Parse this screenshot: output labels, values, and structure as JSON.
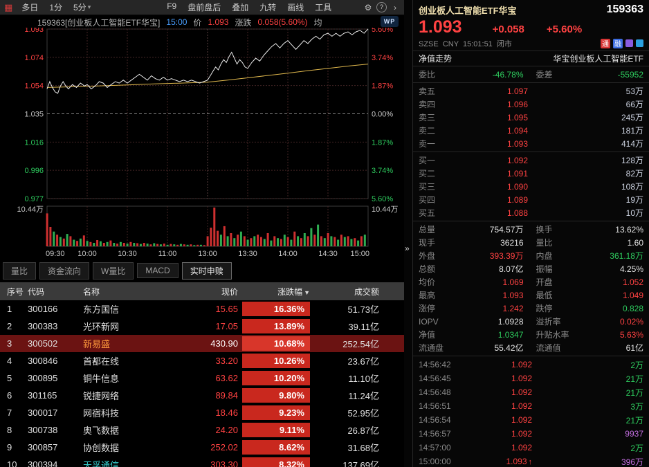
{
  "colors": {
    "up": "#ff4242",
    "down": "#2ecc5e",
    "mid_label": "#c8c8c8",
    "avg_line": "#e0b84d",
    "price_line": "#ebebeb",
    "vol_up": "#cf3030",
    "vol_down": "#2fae52"
  },
  "toolbar": {
    "grid_icon": "▦",
    "left": [
      "多日",
      "1分",
      "5分"
    ],
    "caret": "▾",
    "mid": [
      "F9",
      "盘前盘后",
      "叠加",
      "九转",
      "画线",
      "工具"
    ],
    "right_icons": [
      {
        "name": "settings-icon",
        "glyph": "⚙"
      },
      {
        "name": "help-icon",
        "glyph": "?"
      },
      {
        "name": "chevron-right-icon",
        "glyph": "›"
      }
    ]
  },
  "chart": {
    "header": {
      "code_name": "159363[创业板人工智能ETF华宝]",
      "time": "15:00",
      "price_label": "价",
      "price": "1.093",
      "change_label": "涨跌",
      "change": "0.058(5.60%)",
      "avg_label": "均",
      "logo": "WP"
    },
    "y_left": [
      "1.093",
      "1.074",
      "1.054",
      "1.035",
      "1.016",
      "0.996",
      "0.977"
    ],
    "y_right": [
      "5.60%",
      "3.74%",
      "1.87%",
      "0.00%",
      "1.87%",
      "3.74%",
      "5.60%"
    ],
    "vol_label": "10.44万",
    "x_labels": [
      "09:30",
      "10:00",
      "10:30",
      "11:00",
      "13:00",
      "13:30",
      "14:00",
      "14:30",
      "15:00"
    ],
    "chart_data": {
      "type": "line",
      "prev_close": 1.035,
      "ylim": [
        0.9771,
        1.0929
      ],
      "price": [
        [
          0,
          1.052
        ],
        [
          2,
          1.057
        ],
        [
          4,
          1.053
        ],
        [
          6,
          1.05
        ],
        [
          8,
          1.049
        ],
        [
          10,
          1.054
        ],
        [
          12,
          1.057
        ],
        [
          14,
          1.054
        ],
        [
          16,
          1.052
        ],
        [
          19,
          1.055
        ],
        [
          22,
          1.053
        ],
        [
          25,
          1.056
        ],
        [
          28,
          1.054
        ],
        [
          30,
          1.055
        ],
        [
          33,
          1.052
        ],
        [
          36,
          1.054
        ],
        [
          39,
          1.057
        ],
        [
          42,
          1.056
        ],
        [
          45,
          1.053
        ],
        [
          48,
          1.055
        ],
        [
          51,
          1.057
        ],
        [
          54,
          1.056
        ],
        [
          57,
          1.058
        ],
        [
          60,
          1.056
        ],
        [
          63,
          1.058
        ],
        [
          66,
          1.06
        ],
        [
          69,
          1.062
        ],
        [
          72,
          1.06
        ],
        [
          75,
          1.058
        ],
        [
          78,
          1.061
        ],
        [
          81,
          1.059
        ],
        [
          84,
          1.058
        ],
        [
          87,
          1.06
        ],
        [
          90,
          1.058
        ],
        [
          93,
          1.059
        ],
        [
          96,
          1.058
        ],
        [
          99,
          1.057
        ],
        [
          102,
          1.058
        ],
        [
          105,
          1.057
        ],
        [
          108,
          1.058
        ],
        [
          111,
          1.057
        ],
        [
          114,
          1.056
        ],
        [
          117,
          1.057
        ],
        [
          120,
          1.058
        ],
        [
          122,
          1.061
        ],
        [
          124,
          1.064
        ],
        [
          126,
          1.067
        ],
        [
          128,
          1.065
        ],
        [
          130,
          1.069
        ],
        [
          132,
          1.072
        ],
        [
          134,
          1.07
        ],
        [
          136,
          1.074
        ],
        [
          138,
          1.077
        ],
        [
          140,
          1.073
        ],
        [
          142,
          1.069
        ],
        [
          144,
          1.072
        ],
        [
          146,
          1.07
        ],
        [
          148,
          1.067
        ],
        [
          150,
          1.066
        ],
        [
          153,
          1.07
        ],
        [
          156,
          1.073
        ],
        [
          159,
          1.071
        ],
        [
          162,
          1.075
        ],
        [
          165,
          1.078
        ],
        [
          168,
          1.081
        ],
        [
          171,
          1.083
        ],
        [
          174,
          1.08
        ],
        [
          177,
          1.083
        ],
        [
          180,
          1.085
        ],
        [
          183,
          1.082
        ],
        [
          186,
          1.079
        ],
        [
          189,
          1.082
        ],
        [
          192,
          1.085
        ],
        [
          195,
          1.083
        ],
        [
          198,
          1.086
        ],
        [
          201,
          1.088
        ],
        [
          204,
          1.086
        ],
        [
          207,
          1.089
        ],
        [
          210,
          1.09
        ],
        [
          213,
          1.088
        ],
        [
          216,
          1.09
        ],
        [
          219,
          1.088
        ],
        [
          222,
          1.09
        ],
        [
          225,
          1.091
        ],
        [
          228,
          1.089
        ],
        [
          231,
          1.091
        ],
        [
          234,
          1.092
        ],
        [
          237,
          1.09
        ],
        [
          240,
          1.093
        ]
      ],
      "avg": [
        [
          0,
          1.053
        ],
        [
          20,
          1.0535
        ],
        [
          40,
          1.0541
        ],
        [
          60,
          1.0547
        ],
        [
          80,
          1.0554
        ],
        [
          100,
          1.056
        ],
        [
          120,
          1.0566
        ],
        [
          135,
          1.058
        ],
        [
          150,
          1.0596
        ],
        [
          165,
          1.0612
        ],
        [
          180,
          1.0628
        ],
        [
          195,
          1.0645
        ],
        [
          210,
          1.066
        ],
        [
          225,
          1.0676
        ],
        [
          240,
          1.069
        ]
      ],
      "volume": "r85,r50,g38,r30,g24,r20,g32,r26,g17,r14,g20,r28,g14,r11,g9,r16,g13,r9,g11,r15,g9,r7,g11,r9,g7,r11,g9,r8,g6,r9,g7,r5,g8,r6,g5,r7,g4,r6,g5,r4,g6,r5,g4,r5,g3,r4,g4,r3,r26,r48,r100,r40,g30,r52,g26,r34,g21,r30,g38,r26,g17,r21,g26,r30,r24,g19,r34,g15,r26,g21,r19,g30,r24,g17,r38,g26,r21,g34,r26,g47,r30,g56,r26,g21,r34,g26,r24,g17,r30,g24,r26,g19,r21,g15,r26,g30"
    }
  },
  "tabs": {
    "items": [
      "量比",
      "资金流向",
      "W量比",
      "MACD",
      "实时申赎"
    ],
    "active": 4
  },
  "table": {
    "headers": [
      "序号",
      "代码",
      "名称",
      "现价",
      "涨跌幅",
      "成交额"
    ],
    "sort_arrow": "▼",
    "rows": [
      {
        "no": "1",
        "code": "300166",
        "name": "东方国信",
        "price": "15.65",
        "pct": "16.36%",
        "amount": "51.73亿"
      },
      {
        "no": "2",
        "code": "300383",
        "name": "光环新网",
        "price": "17.05",
        "pct": "13.89%",
        "amount": "39.11亿"
      },
      {
        "no": "3",
        "code": "300502",
        "name": "新易盛",
        "price": "430.90",
        "pct": "10.68%",
        "amount": "252.54亿",
        "selected": true,
        "name_color": "#ff9a3c",
        "price_color": "#ffffff"
      },
      {
        "no": "4",
        "code": "300846",
        "name": "首都在线",
        "price": "33.20",
        "pct": "10.26%",
        "amount": "23.67亿"
      },
      {
        "no": "5",
        "code": "300895",
        "name": "铜牛信息",
        "price": "63.62",
        "pct": "10.20%",
        "amount": "11.10亿"
      },
      {
        "no": "6",
        "code": "301165",
        "name": "锐捷网络",
        "price": "89.84",
        "pct": "9.80%",
        "amount": "11.24亿"
      },
      {
        "no": "7",
        "code": "300017",
        "name": "网宿科技",
        "price": "18.46",
        "pct": "9.23%",
        "amount": "52.95亿"
      },
      {
        "no": "8",
        "code": "300738",
        "name": "奥飞数据",
        "price": "24.20",
        "pct": "9.11%",
        "amount": "26.87亿"
      },
      {
        "no": "9",
        "code": "300857",
        "name": "协创数据",
        "price": "252.02",
        "pct": "8.62%",
        "amount": "31.68亿"
      },
      {
        "no": "10",
        "code": "300394",
        "name": "天孚通信",
        "price": "303.30",
        "pct": "8.32%",
        "amount": "137.69亿",
        "name_color": "#35c8c8"
      }
    ]
  },
  "splitter_glyph": "»",
  "panel": {
    "title": "创业板人工智能ETF华宝",
    "code": "159363",
    "price": "1.093",
    "change": "+0.058",
    "pct": "+5.60%",
    "market_info": "SZSE  CNY  15:01:51  闭市",
    "badges": [
      {
        "text": "通",
        "color": "#d83535"
      },
      {
        "text": "融",
        "color": "#3c6ce0"
      },
      {
        "text": "",
        "color": "#8a5ce0"
      },
      {
        "text": "",
        "color": "#2aa0e0"
      }
    ],
    "nav_label": "净值走势",
    "fund_name": "华宝创业板人工智能ETF",
    "weibi_label": "委比",
    "weibi": "-46.78%",
    "weicha_label": "委差",
    "weicha": "-55952",
    "asks": [
      {
        "label": "卖五",
        "price": "1.097",
        "vol": "53万"
      },
      {
        "label": "卖四",
        "price": "1.096",
        "vol": "66万"
      },
      {
        "label": "卖三",
        "price": "1.095",
        "vol": "245万"
      },
      {
        "label": "卖二",
        "price": "1.094",
        "vol": "181万"
      },
      {
        "label": "卖一",
        "price": "1.093",
        "vol": "414万"
      }
    ],
    "bids": [
      {
        "label": "买一",
        "price": "1.092",
        "vol": "128万"
      },
      {
        "label": "买二",
        "price": "1.091",
        "vol": "82万"
      },
      {
        "label": "买三",
        "price": "1.090",
        "vol": "108万"
      },
      {
        "label": "买四",
        "price": "1.089",
        "vol": "19万"
      },
      {
        "label": "买五",
        "price": "1.088",
        "vol": "10万"
      }
    ],
    "stats": [
      {
        "l1": "总量",
        "v1": "754.57万",
        "c1": "w",
        "l2": "换手",
        "v2": "13.62%",
        "c2": "w"
      },
      {
        "l1": "现手",
        "v1": "36216",
        "c1": "w",
        "l2": "量比",
        "v2": "1.60",
        "c2": "w"
      },
      {
        "l1": "外盘",
        "v1": "393.39万",
        "c1": "u",
        "l2": "内盘",
        "v2": "361.18万",
        "c2": "d"
      },
      {
        "l1": "总额",
        "v1": "8.07亿",
        "c1": "w",
        "l2": "振幅",
        "v2": "4.25%",
        "c2": "w"
      },
      {
        "l1": "均价",
        "v1": "1.069",
        "c1": "u",
        "l2": "开盘",
        "v2": "1.052",
        "c2": "u"
      },
      {
        "l1": "最高",
        "v1": "1.093",
        "c1": "u",
        "l2": "最低",
        "v2": "1.049",
        "c2": "u"
      },
      {
        "l1": "涨停",
        "v1": "1.242",
        "c1": "u",
        "l2": "跌停",
        "v2": "0.828",
        "c2": "d"
      },
      {
        "l1": "IOPV",
        "v1": "1.0928",
        "c1": "w",
        "l2": "溢折率",
        "v2": "0.02%",
        "c2": "u"
      },
      {
        "l1": "净值",
        "v1": "1.0347",
        "c1": "d",
        "l2": "升贴水率",
        "v2": "5.63%",
        "c2": "u"
      },
      {
        "l1": "流通盘",
        "v1": "55.42亿",
        "c1": "w",
        "l2": "流通值",
        "v2": "61亿",
        "c2": "w"
      }
    ],
    "ticks": [
      {
        "time": "14:56:42",
        "price": "1.092",
        "vol": "2万",
        "vc": "d"
      },
      {
        "time": "14:56:45",
        "price": "1.092",
        "vol": "21万",
        "vc": "d"
      },
      {
        "time": "14:56:48",
        "price": "1.092",
        "vol": "21万",
        "vc": "d"
      },
      {
        "time": "14:56:51",
        "price": "1.092",
        "vol": "3万",
        "vc": "d"
      },
      {
        "time": "14:56:54",
        "price": "1.092",
        "vol": "21万",
        "vc": "d"
      },
      {
        "time": "14:56:57",
        "price": "1.092",
        "vol": "9937",
        "vc": "p"
      },
      {
        "time": "14:57:00",
        "price": "1.092",
        "vol": "2万",
        "vc": "d"
      },
      {
        "time": "15:00:00",
        "price": "1.093",
        "arrow": "↑",
        "vol": "396万",
        "vc": "p"
      }
    ]
  }
}
